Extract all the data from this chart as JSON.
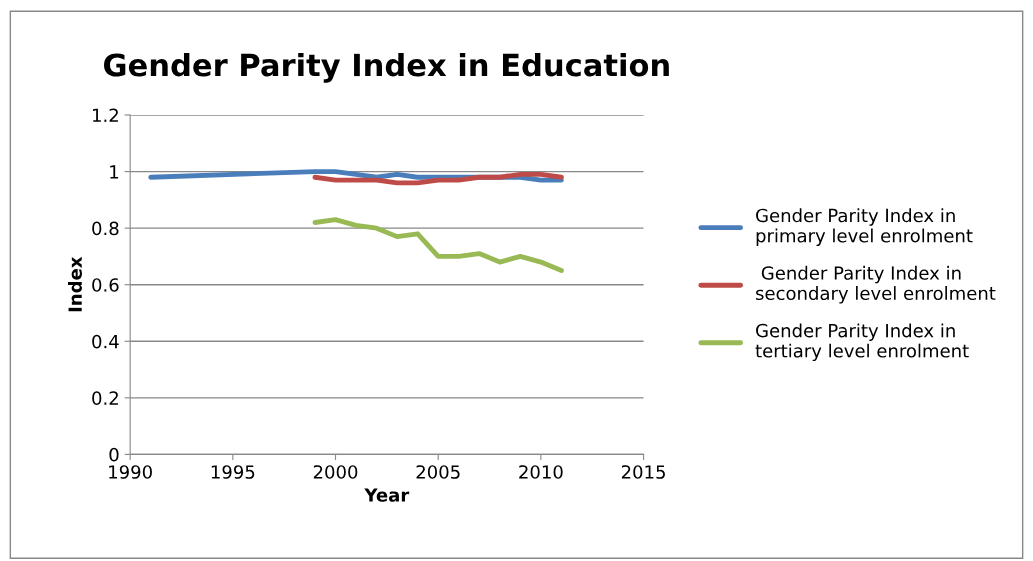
{
  "chart_data": {
    "type": "line",
    "title": "Gender Parity Index in Education",
    "xlabel": "Year",
    "ylabel": "Index",
    "xlim": [
      1990,
      2015
    ],
    "xticks": [
      1990,
      1995,
      2000,
      2005,
      2010,
      2015
    ],
    "ylim": [
      0,
      1.2
    ],
    "yticks": [
      0,
      0.2,
      0.4,
      0.6,
      0.8,
      1,
      1.2
    ],
    "grid": "y",
    "legend": "right",
    "marker": "none",
    "line_style": "solid",
    "series": [
      {
        "name": "Gender Parity Index in\nprimary level enrolment",
        "color": "#4a7ebb",
        "x": [
          1991,
          1999,
          2000,
          2001,
          2002,
          2003,
          2004,
          2005,
          2006,
          2007,
          2008,
          2009,
          2010,
          2011
        ],
        "values": [
          0.98,
          1.0,
          1.0,
          0.99,
          0.98,
          0.99,
          0.98,
          0.98,
          0.98,
          0.98,
          0.98,
          0.98,
          0.97,
          0.97
        ]
      },
      {
        "name": " Gender Parity Index in\nsecondary level enrolment",
        "color": "#be4b48",
        "x": [
          1999,
          2000,
          2001,
          2002,
          2003,
          2004,
          2005,
          2006,
          2007,
          2008,
          2009,
          2010,
          2011
        ],
        "values": [
          0.98,
          0.97,
          0.97,
          0.97,
          0.96,
          0.96,
          0.97,
          0.97,
          0.98,
          0.98,
          0.99,
          0.99,
          0.98
        ]
      },
      {
        "name": "Gender Parity Index in\ntertiary level enrolment",
        "color": "#98b954",
        "x": [
          1999,
          2000,
          2001,
          2002,
          2003,
          2004,
          2005,
          2006,
          2007,
          2008,
          2009,
          2010,
          2011
        ],
        "values": [
          0.82,
          0.83,
          0.81,
          0.8,
          0.77,
          0.78,
          0.7,
          0.7,
          0.71,
          0.68,
          0.7,
          0.68,
          0.65
        ]
      }
    ]
  }
}
